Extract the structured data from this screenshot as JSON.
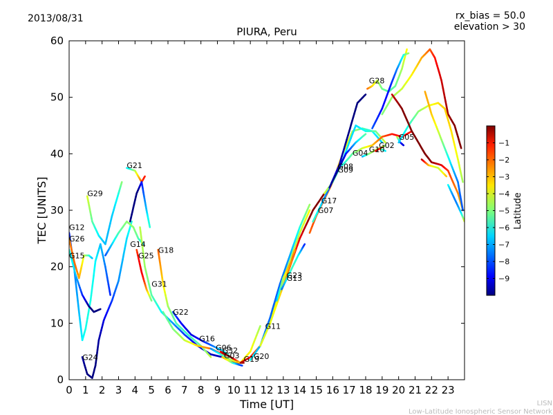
{
  "header": {
    "date": "2013/08/31",
    "rx_bias": "rx_bias = 50.0",
    "elevation": "elevation > 30"
  },
  "footer": {
    "org_short": "LISN",
    "org_long": "Low-Latitude Ionospheric Sensor Network"
  },
  "chart_data": {
    "type": "line",
    "title": "PIURA, Peru",
    "xlabel": "Time [UT]",
    "ylabel": "TEC [UNITS]",
    "xlim": [
      0,
      24
    ],
    "ylim": [
      0,
      60
    ],
    "xticks": [
      "0",
      "1",
      "2",
      "3",
      "4",
      "5",
      "6",
      "7",
      "8",
      "9",
      "10",
      "11",
      "12",
      "13",
      "14",
      "15",
      "16",
      "17",
      "18",
      "19",
      "20",
      "21",
      "22",
      "23"
    ],
    "yticks": [
      "0",
      "10",
      "20",
      "30",
      "40",
      "50",
      "60"
    ],
    "colorbar": {
      "label": "Latitude",
      "range": [
        -10,
        0
      ],
      "ticks": [
        "−1",
        "−2",
        "−3",
        "−4",
        "−5",
        "−6",
        "−7",
        "−8",
        "−9"
      ]
    },
    "series": [
      {
        "name": "G12",
        "label_at": [
          0.0,
          26.5
        ],
        "points": [
          [
            0.0,
            26
          ],
          [
            0.3,
            20
          ],
          [
            0.6,
            12
          ],
          [
            0.8,
            7
          ],
          [
            1.0,
            9
          ],
          [
            1.3,
            14
          ],
          [
            1.6,
            21
          ],
          [
            1.9,
            24
          ],
          [
            2.2,
            20
          ],
          [
            2.5,
            15
          ]
        ]
      },
      {
        "name": "G26",
        "label_at": [
          0.0,
          24.5
        ],
        "points": [
          [
            0.0,
            25
          ],
          [
            0.3,
            21
          ],
          [
            0.6,
            18
          ],
          [
            0.9,
            22
          ],
          [
            1.2,
            22
          ],
          [
            1.4,
            21.5
          ]
        ]
      },
      {
        "name": "G15",
        "label_at": [
          0.0,
          21.5
        ],
        "points": [
          [
            0.0,
            23
          ],
          [
            0.4,
            18.5
          ],
          [
            0.8,
            15
          ],
          [
            1.2,
            13
          ],
          [
            1.5,
            12
          ],
          [
            1.9,
            12.5
          ]
        ]
      },
      {
        "name": "G29",
        "label_at": [
          1.1,
          32.5
        ],
        "points": [
          [
            1.1,
            32.5
          ],
          [
            1.4,
            28
          ],
          [
            1.8,
            25.5
          ],
          [
            2.2,
            24
          ],
          [
            2.6,
            29
          ],
          [
            3.0,
            33
          ],
          [
            3.2,
            35
          ]
        ]
      },
      {
        "name": "G24",
        "label_at": [
          0.8,
          3.5
        ],
        "points": [
          [
            0.8,
            4
          ],
          [
            1.1,
            1
          ],
          [
            1.4,
            0.3
          ],
          [
            1.6,
            2.5
          ],
          [
            1.8,
            7
          ],
          [
            2.1,
            10.5
          ],
          [
            2.6,
            14
          ],
          [
            3.0,
            17.5
          ],
          [
            3.5,
            25
          ],
          [
            3.8,
            28
          ]
        ]
      },
      {
        "name": "G21",
        "label_at": [
          3.5,
          37.5
        ],
        "points": [
          [
            3.5,
            37.5
          ],
          [
            4.0,
            37
          ],
          [
            4.4,
            35
          ],
          [
            4.6,
            36
          ]
        ]
      },
      {
        "name": "G14",
        "label_at": [
          3.7,
          23.5
        ],
        "points": [
          [
            2.2,
            22
          ],
          [
            2.6,
            24
          ],
          [
            3.0,
            26
          ],
          [
            3.5,
            28
          ],
          [
            3.9,
            27
          ],
          [
            4.2,
            25
          ],
          [
            4.5,
            24
          ]
        ]
      },
      {
        "name": "G25",
        "label_at": [
          4.2,
          21.5
        ],
        "points": [
          [
            4.1,
            23
          ],
          [
            4.4,
            19
          ],
          [
            4.7,
            16
          ],
          [
            5.0,
            14
          ]
        ]
      },
      {
        "name": "G31",
        "label_at": [
          5.0,
          16.5
        ],
        "points": [
          [
            4.3,
            27
          ],
          [
            4.6,
            20
          ],
          [
            5.0,
            15
          ],
          [
            5.6,
            12
          ],
          [
            6.3,
            10
          ],
          [
            7.0,
            8
          ],
          [
            7.8,
            6
          ],
          [
            8.6,
            4.5
          ],
          [
            9.3,
            4
          ]
        ]
      },
      {
        "name": "G18",
        "label_at": [
          5.4,
          22.5
        ],
        "points": [
          [
            5.4,
            23
          ],
          [
            5.7,
            17
          ],
          [
            6.0,
            13
          ],
          [
            6.5,
            10
          ],
          [
            7.2,
            8
          ],
          [
            8.0,
            6
          ],
          [
            8.6,
            4
          ]
        ]
      },
      {
        "name": "G22",
        "label_at": [
          6.3,
          11.5
        ],
        "points": [
          [
            6.3,
            12
          ],
          [
            6.8,
            10
          ],
          [
            7.4,
            8
          ],
          [
            8.0,
            7
          ],
          [
            8.7,
            6
          ],
          [
            9.4,
            5
          ],
          [
            10.0,
            3.5
          ]
        ]
      },
      {
        "name": "G16",
        "label_at": [
          7.9,
          6.8
        ],
        "points": [
          [
            5.7,
            12
          ],
          [
            6.3,
            9
          ],
          [
            7.0,
            7
          ],
          [
            7.8,
            6
          ],
          [
            8.6,
            5.5
          ],
          [
            9.3,
            4.5
          ],
          [
            10.0,
            3
          ],
          [
            10.6,
            3
          ]
        ]
      },
      {
        "name": "G06",
        "label_at": [
          8.9,
          5.2
        ],
        "points": [
          [
            8.6,
            5.5
          ],
          [
            9.2,
            4.5
          ],
          [
            9.8,
            3.5
          ],
          [
            10.4,
            3
          ],
          [
            11.0,
            5
          ],
          [
            11.6,
            9.5
          ]
        ]
      },
      {
        "name": "G32",
        "label_at": [
          9.3,
          4.7
        ],
        "points": [
          [
            9.2,
            5
          ],
          [
            9.8,
            4
          ],
          [
            10.4,
            3
          ]
        ]
      },
      {
        "name": "G03",
        "label_at": [
          9.4,
          3.8
        ],
        "points": [
          [
            9.3,
            4
          ],
          [
            9.9,
            3
          ],
          [
            10.5,
            2.5
          ]
        ]
      },
      {
        "name": "G19",
        "label_at": [
          10.6,
          3.2
        ],
        "points": [
          [
            10.4,
            3
          ],
          [
            11.0,
            4
          ],
          [
            11.6,
            6
          ],
          [
            12.2,
            10
          ],
          [
            12.8,
            16
          ],
          [
            13.4,
            21
          ],
          [
            14.0,
            26
          ],
          [
            14.6,
            30
          ]
        ]
      },
      {
        "name": "G20",
        "label_at": [
          11.2,
          3.7
        ],
        "points": [
          [
            11.0,
            3.5
          ],
          [
            11.6,
            6
          ],
          [
            12.2,
            11
          ],
          [
            12.8,
            17
          ],
          [
            13.4,
            22
          ],
          [
            14.0,
            27
          ],
          [
            14.6,
            31
          ]
        ]
      },
      {
        "name": "G11",
        "label_at": [
          11.9,
          9.0
        ],
        "points": [
          [
            11.6,
            6
          ],
          [
            12.2,
            10
          ],
          [
            12.8,
            15
          ],
          [
            13.4,
            20
          ],
          [
            14.0,
            25
          ],
          [
            14.8,
            30
          ],
          [
            15.5,
            33
          ]
        ]
      },
      {
        "name": "G23",
        "label_at": [
          13.2,
          18.0
        ],
        "points": [
          [
            12.6,
            14
          ],
          [
            13.0,
            18
          ],
          [
            13.5,
            21
          ],
          [
            13.7,
            23
          ]
        ]
      },
      {
        "name": "G13",
        "label_at": [
          13.2,
          17.5
        ],
        "points": [
          [
            12.9,
            16
          ],
          [
            13.4,
            19
          ],
          [
            13.9,
            22
          ],
          [
            14.3,
            24
          ]
        ]
      },
      {
        "name": "G07",
        "label_at": [
          15.1,
          29.5
        ],
        "points": [
          [
            14.6,
            26
          ],
          [
            15.0,
            29
          ],
          [
            15.5,
            32
          ],
          [
            16.0,
            35
          ],
          [
            16.6,
            40
          ],
          [
            17.2,
            44
          ],
          [
            17.8,
            44.5
          ],
          [
            18.4,
            44
          ],
          [
            19.0,
            42
          ]
        ]
      },
      {
        "name": "G17",
        "label_at": [
          15.3,
          31.2
        ],
        "points": [
          [
            14.8,
            28
          ],
          [
            15.3,
            31
          ],
          [
            15.8,
            34
          ],
          [
            16.4,
            38
          ],
          [
            17.0,
            44
          ],
          [
            17.5,
            49
          ],
          [
            18.0,
            50.5
          ]
        ]
      },
      {
        "name": "G09",
        "label_at": [
          16.3,
          36.7
        ],
        "points": [
          [
            15.5,
            33
          ],
          [
            16.0,
            35
          ],
          [
            16.5,
            38
          ],
          [
            17.0,
            42
          ],
          [
            17.4,
            45
          ],
          [
            18.0,
            44
          ],
          [
            18.6,
            44
          ],
          [
            19.2,
            42
          ]
        ]
      },
      {
        "name": "G08",
        "label_at": [
          16.3,
          37.3
        ],
        "points": [
          [
            15.8,
            34
          ],
          [
            16.3,
            37
          ],
          [
            16.8,
            40
          ],
          [
            17.4,
            42
          ],
          [
            18.0,
            43.5
          ]
        ]
      },
      {
        "name": "G04",
        "label_at": [
          17.2,
          39.7
        ],
        "points": [
          [
            16.6,
            38
          ],
          [
            17.2,
            40
          ],
          [
            17.8,
            41
          ],
          [
            18.4,
            41.5
          ],
          [
            19.0,
            43
          ],
          [
            19.6,
            43.5
          ],
          [
            20.2,
            43
          ],
          [
            20.8,
            44
          ]
        ]
      },
      {
        "name": "G10",
        "label_at": [
          18.2,
          40.3
        ],
        "points": [
          [
            17.8,
            39.5
          ],
          [
            18.2,
            40
          ],
          [
            18.8,
            41
          ],
          [
            19.2,
            40.5
          ]
        ]
      },
      {
        "name": "G02",
        "label_at": [
          18.8,
          41.0
        ],
        "points": [
          [
            18.6,
            40.5
          ],
          [
            18.9,
            41
          ],
          [
            19.2,
            41.5
          ]
        ]
      },
      {
        "name": "G05",
        "label_at": [
          20.0,
          42.5
        ],
        "points": [
          [
            19.9,
            43
          ],
          [
            20.1,
            42
          ],
          [
            20.3,
            41.5
          ]
        ]
      },
      {
        "name": "G28",
        "label_at": [
          18.2,
          52.5
        ],
        "points": [
          [
            18.1,
            51.5
          ],
          [
            18.4,
            52
          ],
          [
            18.7,
            53
          ],
          [
            19.0,
            51.5
          ],
          [
            19.4,
            51
          ],
          [
            19.8,
            52
          ],
          [
            20.2,
            55
          ],
          [
            20.5,
            58.5
          ]
        ]
      },
      {
        "name": "",
        "label_at": null,
        "points": [
          [
            18.4,
            44.5
          ],
          [
            19.0,
            48
          ],
          [
            19.5,
            52
          ],
          [
            19.9,
            55
          ],
          [
            20.3,
            57.5
          ],
          [
            20.6,
            57.8
          ]
        ]
      },
      {
        "name": "",
        "label_at": null,
        "points": [
          [
            19.0,
            47
          ],
          [
            19.6,
            50
          ],
          [
            20.2,
            51.5
          ],
          [
            20.8,
            54
          ],
          [
            21.4,
            57
          ],
          [
            21.9,
            58.5
          ],
          [
            22.2,
            57
          ],
          [
            22.6,
            53
          ],
          [
            23.0,
            47
          ],
          [
            23.4,
            45
          ],
          [
            23.8,
            41
          ]
        ]
      },
      {
        "name": "",
        "label_at": null,
        "points": [
          [
            20.0,
            42
          ],
          [
            20.6,
            45
          ],
          [
            21.2,
            47.5
          ],
          [
            21.8,
            48.5
          ],
          [
            22.4,
            49
          ],
          [
            22.8,
            48
          ],
          [
            23.2,
            44
          ],
          [
            23.6,
            39
          ],
          [
            23.9,
            35
          ]
        ]
      },
      {
        "name": "",
        "label_at": null,
        "points": [
          [
            19.6,
            50.5
          ],
          [
            20.2,
            48
          ],
          [
            20.8,
            44
          ],
          [
            21.2,
            42
          ],
          [
            21.6,
            40
          ],
          [
            22.0,
            38.5
          ],
          [
            22.6,
            38
          ],
          [
            23.0,
            37
          ],
          [
            23.6,
            33
          ],
          [
            23.9,
            30
          ]
        ]
      },
      {
        "name": "",
        "label_at": null,
        "points": [
          [
            21.6,
            51
          ],
          [
            22.0,
            47
          ],
          [
            22.4,
            44
          ],
          [
            22.8,
            41
          ],
          [
            23.2,
            38
          ],
          [
            23.6,
            35
          ],
          [
            23.9,
            30
          ]
        ]
      },
      {
        "name": "",
        "label_at": null,
        "points": [
          [
            21.4,
            39
          ],
          [
            21.8,
            38
          ],
          [
            22.4,
            37.5
          ],
          [
            22.9,
            36
          ]
        ]
      },
      {
        "name": "",
        "label_at": null,
        "points": [
          [
            23.0,
            34.5
          ],
          [
            23.4,
            32
          ],
          [
            23.8,
            29.5
          ],
          [
            24.0,
            28
          ]
        ]
      },
      {
        "name": "",
        "label_at": null,
        "points": [
          [
            3.7,
            28
          ],
          [
            4.1,
            33
          ],
          [
            4.4,
            35
          ],
          [
            4.7,
            30
          ],
          [
            4.9,
            27
          ]
        ]
      }
    ]
  }
}
